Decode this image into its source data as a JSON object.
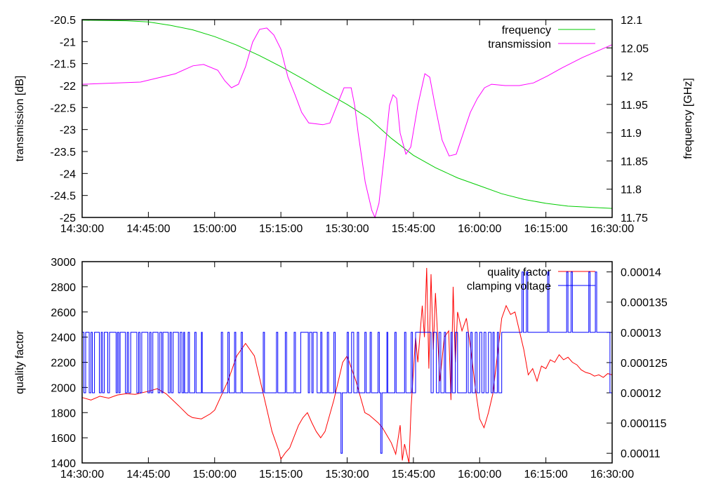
{
  "chart_data": [
    {
      "type": "line",
      "xlabel": "",
      "ylabel": "transmission [dB]",
      "y2label": "frequency [GHz]",
      "x_ticks": [
        "14:30:00",
        "14:45:00",
        "15:00:00",
        "15:15:00",
        "15:30:00",
        "15:45:00",
        "16:00:00",
        "16:15:00",
        "16:30:00"
      ],
      "x_unit": "minutes since 14:30:00",
      "xlim": [
        0,
        120
      ],
      "ylim": [
        -25,
        -20.5
      ],
      "y_ticks": [
        "-25",
        "-24.5",
        "-24",
        "-23.5",
        "-23",
        "-22.5",
        "-22",
        "-21.5",
        "-21",
        "-20.5"
      ],
      "y2lim": [
        11.75,
        12.1
      ],
      "y2_ticks": [
        "11.75",
        "11.8",
        "11.85",
        "11.9",
        "11.95",
        "12",
        "12.05",
        "12.1"
      ],
      "legend_position": "top-right",
      "series": [
        {
          "name": "frequency",
          "axis": "y2",
          "color": "#00cc00",
          "points": [
            [
              0,
              12.099
            ],
            [
              10,
              12.098
            ],
            [
              15,
              12.096
            ],
            [
              20,
              12.09
            ],
            [
              25,
              12.082
            ],
            [
              30,
              12.07
            ],
            [
              35,
              12.055
            ],
            [
              40,
              12.037
            ],
            [
              45,
              12.017
            ],
            [
              50,
              11.995
            ],
            [
              55,
              11.972
            ],
            [
              60,
              11.95
            ],
            [
              65,
              11.925
            ],
            [
              70,
              11.89
            ],
            [
              75,
              11.86
            ],
            [
              80,
              11.838
            ],
            [
              85,
              11.82
            ],
            [
              90,
              11.806
            ],
            [
              95,
              11.792
            ],
            [
              100,
              11.782
            ],
            [
              105,
              11.775
            ],
            [
              110,
              11.77
            ],
            [
              120,
              11.766
            ]
          ]
        },
        {
          "name": "transmission",
          "axis": "y",
          "color": "#ff00ff",
          "points": [
            [
              0,
              -21.97
            ],
            [
              13.2,
              -21.92
            ],
            [
              21.1,
              -21.73
            ],
            [
              25.1,
              -21.55
            ],
            [
              27.5,
              -21.52
            ],
            [
              30.7,
              -21.65
            ],
            [
              32.3,
              -21.89
            ],
            [
              33.8,
              -22.05
            ],
            [
              35.4,
              -21.97
            ],
            [
              37,
              -21.57
            ],
            [
              38.6,
              -21.01
            ],
            [
              40.2,
              -20.72
            ],
            [
              41.8,
              -20.69
            ],
            [
              43.4,
              -20.85
            ],
            [
              45,
              -21.17
            ],
            [
              46.6,
              -21.81
            ],
            [
              48.2,
              -22.21
            ],
            [
              49.7,
              -22.61
            ],
            [
              51.3,
              -22.85
            ],
            [
              54.5,
              -22.89
            ],
            [
              56.1,
              -22.85
            ],
            [
              57.7,
              -22.45
            ],
            [
              59.3,
              -22.05
            ],
            [
              60.9,
              -22.05
            ],
            [
              61.7,
              -22.45
            ],
            [
              62.5,
              -23.08
            ],
            [
              64.1,
              -24.2
            ],
            [
              65.6,
              -24.84
            ],
            [
              66.3,
              -25
            ],
            [
              67.2,
              -24.68
            ],
            [
              68.8,
              -23.24
            ],
            [
              69.6,
              -22.45
            ],
            [
              70.4,
              -22.21
            ],
            [
              71.2,
              -22.29
            ],
            [
              72,
              -23.08
            ],
            [
              73.3,
              -23.56
            ],
            [
              74.4,
              -23.4
            ],
            [
              76,
              -22.45
            ],
            [
              77.6,
              -21.73
            ],
            [
              78.7,
              -21.81
            ],
            [
              79.9,
              -22.45
            ],
            [
              81.5,
              -23.24
            ],
            [
              83.1,
              -23.6
            ],
            [
              84.7,
              -23.56
            ],
            [
              86.3,
              -23.08
            ],
            [
              87.9,
              -22.61
            ],
            [
              89.5,
              -22.29
            ],
            [
              91.1,
              -22.05
            ],
            [
              92.7,
              -21.97
            ],
            [
              95.8,
              -22.0
            ],
            [
              99,
              -22.0
            ],
            [
              102.2,
              -21.94
            ],
            [
              105.4,
              -21.78
            ],
            [
              108.6,
              -21.6
            ],
            [
              113.3,
              -21.36
            ],
            [
              120,
              -21.07
            ]
          ]
        }
      ]
    },
    {
      "type": "line",
      "xlabel": "",
      "ylabel": "quality factor",
      "y2label": "",
      "x_ticks": [
        "14:30:00",
        "14:45:00",
        "15:00:00",
        "15:15:00",
        "15:30:00",
        "15:45:00",
        "16:00:00",
        "16:15:00",
        "16:30:00"
      ],
      "x_unit": "minutes since 14:30:00",
      "xlim": [
        0,
        120
      ],
      "ylim": [
        1400,
        3000
      ],
      "y_ticks": [
        "1400",
        "1600",
        "1800",
        "2000",
        "2200",
        "2400",
        "2600",
        "2800",
        "3000"
      ],
      "y2lim": [
        0.0001084,
        0.0001417
      ],
      "y2_ticks": [
        "0.00011",
        "0.000115",
        "0.00012",
        "0.000125",
        "0.00013",
        "0.000135",
        "0.00014"
      ],
      "legend_position": "top-right",
      "series": [
        {
          "name": "quality factor",
          "axis": "y",
          "color": "#ff0000",
          "points": [
            [
              0,
              1920
            ],
            [
              2,
              1900
            ],
            [
              4,
              1930
            ],
            [
              6,
              1915
            ],
            [
              8,
              1940
            ],
            [
              10,
              1950
            ],
            [
              12,
              1945
            ],
            [
              15,
              1970
            ],
            [
              17,
              1990
            ],
            [
              19,
              1950
            ],
            [
              22,
              1850
            ],
            [
              24,
              1780
            ],
            [
              25,
              1760
            ],
            [
              27,
              1750
            ],
            [
              29,
              1790
            ],
            [
              30,
              1820
            ],
            [
              33,
              2050
            ],
            [
              35,
              2250
            ],
            [
              37,
              2350
            ],
            [
              39,
              2250
            ],
            [
              41,
              1950
            ],
            [
              43,
              1650
            ],
            [
              44.5,
              1500
            ],
            [
              45,
              1430
            ],
            [
              46,
              1480
            ],
            [
              47,
              1520
            ],
            [
              49,
              1700
            ],
            [
              50,
              1760
            ],
            [
              51,
              1800
            ],
            [
              52,
              1720
            ],
            [
              53,
              1650
            ],
            [
              54,
              1600
            ],
            [
              55,
              1650
            ],
            [
              57,
              1900
            ],
            [
              59,
              2200
            ],
            [
              60,
              2250
            ],
            [
              61,
              2150
            ],
            [
              62,
              2050
            ],
            [
              64,
              1800
            ],
            [
              65,
              1780
            ],
            [
              66,
              1750
            ],
            [
              67,
              1720
            ],
            [
              68,
              1680
            ],
            [
              69,
              1620
            ],
            [
              70,
              1560
            ],
            [
              71,
              1470
            ],
            [
              72,
              1700
            ],
            [
              72.5,
              1420
            ],
            [
              73,
              1550
            ],
            [
              74,
              1400
            ],
            [
              74.5,
              1850
            ],
            [
              75.5,
              2400
            ],
            [
              76,
              2200
            ],
            [
              77,
              2650
            ],
            [
              77.5,
              2400
            ],
            [
              78,
              2950
            ],
            [
              78.5,
              2150
            ],
            [
              79,
              2900
            ],
            [
              79.5,
              2300
            ],
            [
              80,
              2750
            ],
            [
              81,
              2050
            ],
            [
              82,
              2400
            ],
            [
              83,
              2450
            ],
            [
              83.5,
              1900
            ],
            [
              84,
              2800
            ],
            [
              84.5,
              2200
            ],
            [
              85,
              2600
            ],
            [
              86,
              2450
            ],
            [
              87,
              2550
            ],
            [
              88,
              2300
            ],
            [
              89,
              2000
            ],
            [
              90,
              1750
            ],
            [
              91,
              1680
            ],
            [
              92,
              1800
            ],
            [
              93,
              1950
            ],
            [
              94,
              2250
            ],
            [
              95,
              2550
            ],
            [
              96,
              2650
            ],
            [
              97,
              2580
            ],
            [
              98,
              2600
            ],
            [
              99,
              2450
            ],
            [
              100,
              2300
            ],
            [
              101,
              2100
            ],
            [
              102,
              2150
            ],
            [
              103,
              2050
            ],
            [
              104,
              2170
            ],
            [
              105,
              2150
            ],
            [
              106,
              2220
            ],
            [
              107,
              2200
            ],
            [
              108,
              2260
            ],
            [
              109,
              2220
            ],
            [
              110,
              2240
            ],
            [
              111,
              2200
            ],
            [
              112,
              2180
            ],
            [
              113,
              2140
            ],
            [
              114,
              2120
            ],
            [
              115,
              2110
            ],
            [
              116,
              2090
            ],
            [
              117,
              2100
            ],
            [
              118,
              2080
            ],
            [
              119,
              2110
            ],
            [
              120,
              2100
            ]
          ]
        },
        {
          "name": "clamping voltage",
          "axis": "y2",
          "color": "#0000ff",
          "low": 0.00012,
          "high": 0.00013,
          "high_intervals": [
            [
              0,
              0.4
            ],
            [
              0.8,
              1.6
            ],
            [
              2,
              2.3
            ],
            [
              2.8,
              3.9
            ],
            [
              4.3,
              4.6
            ],
            [
              5,
              5.8
            ],
            [
              6.2,
              7.7
            ],
            [
              8,
              8.3
            ],
            [
              8.6,
              9.8
            ],
            [
              10.2,
              10.5
            ],
            [
              11,
              12.4
            ],
            [
              12.8,
              13.1
            ],
            [
              13.5,
              14.9
            ],
            [
              15.3,
              15.6
            ],
            [
              16,
              17.2
            ],
            [
              17.6,
              18
            ],
            [
              18.3,
              19.5
            ],
            [
              19.9,
              20.2
            ],
            [
              20.6,
              21.8
            ],
            [
              22.2,
              22.6
            ],
            [
              23,
              23.2
            ],
            [
              24,
              24.3
            ],
            [
              25.5,
              25.8
            ],
            [
              27,
              27.2
            ],
            [
              31.5,
              31.8
            ],
            [
              33,
              33.3
            ],
            [
              34.5,
              34.8
            ],
            [
              36,
              36.3
            ],
            [
              41,
              41.3
            ],
            [
              44,
              44.3
            ],
            [
              46,
              46.3
            ],
            [
              48,
              48.3
            ],
            [
              49.5,
              51.2
            ],
            [
              51.5,
              52
            ],
            [
              52.3,
              53.2
            ],
            [
              54,
              54.3
            ],
            [
              55.5,
              55.8
            ],
            [
              57,
              57.3
            ],
            [
              60,
              60.3
            ],
            [
              61,
              61.5
            ],
            [
              62.3,
              62.6
            ],
            [
              64,
              64.3
            ],
            [
              65.2,
              65.5
            ],
            [
              67,
              67.3
            ],
            [
              69,
              69.2
            ],
            [
              70.8,
              71.1
            ],
            [
              73,
              73.3
            ],
            [
              74.5,
              74.8
            ],
            [
              75.5,
              79
            ],
            [
              79.5,
              80.2
            ],
            [
              80.8,
              81.2
            ],
            [
              82,
              82.3
            ],
            [
              83.5,
              83.8
            ],
            [
              84.5,
              85
            ],
            [
              87,
              87.4
            ],
            [
              88,
              88.3
            ],
            [
              89,
              89.4
            ],
            [
              90,
              90.5
            ],
            [
              91,
              91.4
            ],
            [
              92,
              92.6
            ],
            [
              93,
              93.3
            ],
            [
              94,
              94.3
            ],
            [
              95,
              120
            ]
          ],
          "spikes": [
            [
              58.6,
              0.00011
            ],
            [
              67.6,
              0.00011
            ],
            [
              99.6,
              0.00014
            ],
            [
              100.6,
              0.00014
            ],
            [
              105.4,
              0.00014
            ],
            [
              109.7,
              0.00014
            ],
            [
              110.7,
              0.00014
            ],
            [
              114.7,
              0.00014
            ],
            [
              116.2,
              0.00014
            ],
            [
              119.5,
              0.00012
            ]
          ]
        }
      ]
    }
  ]
}
